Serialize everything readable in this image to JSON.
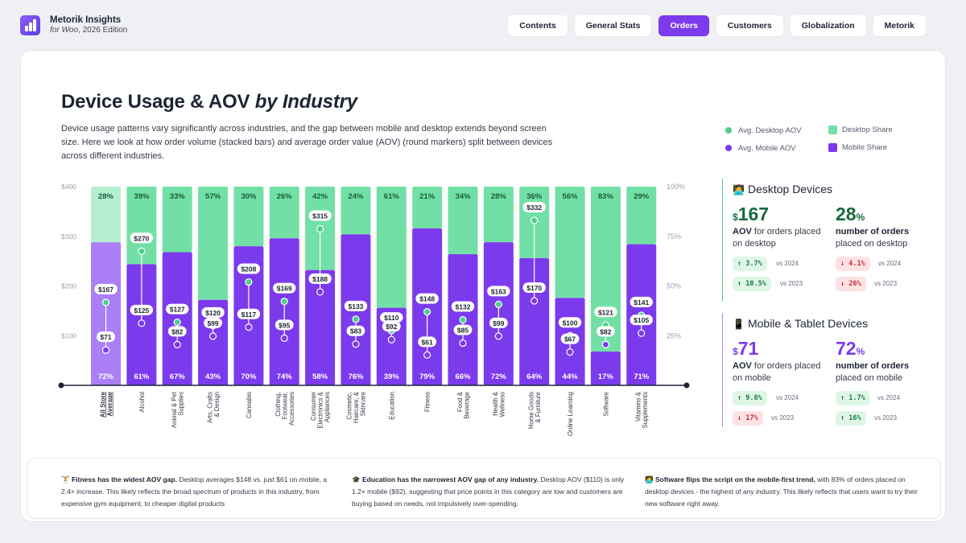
{
  "brand": {
    "title": "Metorik Insights",
    "subtitle_italic": "for Woo",
    "subtitle_rest": ", 2026 Edition"
  },
  "nav": [
    {
      "label": "Contents",
      "active": false
    },
    {
      "label": "General Stats",
      "active": false
    },
    {
      "label": "Orders",
      "active": true
    },
    {
      "label": "Customers",
      "active": false
    },
    {
      "label": "Globalization",
      "active": false
    },
    {
      "label": "Metorik",
      "active": false
    }
  ],
  "page": {
    "title_main": "Device Usage & AOV",
    "title_italic": "by Industry",
    "description": "Device usage patterns vary significantly across industries, and the gap between mobile and desktop extends beyond screen size. Here we look at how order volume (stacked bars) and average order value (AOV) (round markers) split between devices across different industries."
  },
  "legend": {
    "desktop_aov": "Avg. Desktop AOV",
    "mobile_aov": "Avg. Mobile AOV",
    "desktop_share": "Desktop Share",
    "mobile_share": "Mobile Share"
  },
  "colors": {
    "desktop_share": "#72e0a6",
    "mobile_share": "#7c3aed",
    "average_desktop": "#b4efcf",
    "average_mobile": "#ab80f7",
    "desktop_aov": "#4ccf8a",
    "mobile_aov": "#7c3aed"
  },
  "chart_data": {
    "type": "bar",
    "categories": [
      "All Store Average",
      "Alcohol",
      "Animal & Pet Supplies",
      "Arts, Crafts & Design",
      "Cannabis",
      "Clothing, Footwear, Accessories",
      "Consumer Electronics & Appliances",
      "Cosmetic, Haircare, & Skincare",
      "Education",
      "Fitness",
      "Food & Beverage",
      "Health & Wellness",
      "Home Goods & Furniture",
      "Online Learning",
      "Software",
      "Vitamins & Supplements"
    ],
    "category_labels": [
      [
        "All Store",
        "Average"
      ],
      [
        "Alcohol"
      ],
      [
        "Animal & Pet",
        "Supplies"
      ],
      [
        "Arts, Crafts",
        "& Design"
      ],
      [
        "Cannabis"
      ],
      [
        "Clothing,",
        "Footwear,",
        "Accessories"
      ],
      [
        "Consumer",
        "Electronics &",
        "Appliances"
      ],
      [
        "Cosmetic,",
        "Haircare, &",
        "Skincare"
      ],
      [
        "Education"
      ],
      [
        "Fitness"
      ],
      [
        "Food &",
        "Beverage"
      ],
      [
        "Health &",
        "Wellness"
      ],
      [
        "Home Goods",
        "& Furniture"
      ],
      [
        "Online Learning"
      ],
      [
        "Software"
      ],
      [
        "Vitamins &",
        "Supplements"
      ]
    ],
    "series": [
      {
        "name": "Mobile Share",
        "unit": "%",
        "values": [
          72,
          61,
          67,
          43,
          70,
          74,
          58,
          76,
          39,
          79,
          66,
          72,
          64,
          44,
          17,
          71
        ]
      },
      {
        "name": "Desktop Share",
        "unit": "%",
        "values": [
          28,
          39,
          33,
          57,
          30,
          26,
          42,
          24,
          61,
          21,
          34,
          28,
          36,
          56,
          83,
          29
        ]
      },
      {
        "name": "Avg. Desktop AOV",
        "unit": "$",
        "values": [
          167,
          270,
          127,
          120,
          208,
          169,
          315,
          133,
          110,
          148,
          132,
          163,
          332,
          100,
          121,
          141
        ]
      },
      {
        "name": "Avg. Mobile AOV",
        "unit": "$",
        "values": [
          71,
          125,
          82,
          99,
          117,
          95,
          188,
          83,
          92,
          61,
          85,
          99,
          170,
          67,
          82,
          105
        ]
      }
    ],
    "y_left_ticks": [
      "$400",
      "$300",
      "$200",
      "$100"
    ],
    "y_left_range": [
      0,
      400
    ],
    "y_right_ticks": [
      "100%",
      "75%",
      "50%",
      "25%"
    ],
    "y_right_range": [
      0,
      100
    ]
  },
  "desktop": {
    "icon": "🧑‍💻",
    "title": "Desktop Devices",
    "aov_symbol": "$",
    "aov_value": "167",
    "aov_label_bold": "AOV",
    "aov_label_rest": " for orders placed on desktop",
    "orders_value": "28",
    "orders_unit": "%",
    "orders_label_bold": "number of orders",
    "orders_label_rest": " placed on desktop",
    "badges": [
      {
        "text": "↑ 3.7%",
        "vs": "vs 2024",
        "dir": "up"
      },
      {
        "text": "↑ 10.5%",
        "vs": "vs 2023",
        "dir": "up"
      },
      {
        "text": "↓ 4.1%",
        "vs": "vs 2024",
        "dir": "down"
      },
      {
        "text": "↓ 26%",
        "vs": "vs 2023",
        "dir": "down"
      }
    ]
  },
  "mobile": {
    "icon": "📱",
    "title": "Mobile & Tablet Devices",
    "aov_symbol": "$",
    "aov_value": "71",
    "aov_label_bold": "AOV",
    "aov_label_rest": " for orders placed on mobile",
    "orders_value": "72",
    "orders_unit": "%",
    "orders_label_bold": "number of orders",
    "orders_label_rest": " placed on mobile",
    "badges": [
      {
        "text": "↑ 9.6%",
        "vs": "vs 2024",
        "dir": "up"
      },
      {
        "text": "↓ 17%",
        "vs": "vs 2023",
        "dir": "down"
      },
      {
        "text": "↑ 1.7%",
        "vs": "vs 2024",
        "dir": "up"
      },
      {
        "text": "↑ 16%",
        "vs": "vs 2023",
        "dir": "up"
      }
    ]
  },
  "insights": [
    {
      "icon": "🏋️",
      "bold": "Fitness has the widest AOV gap.",
      "text": " Desktop averages $148 vs. just $61 on mobile, a 2.4× increase. This likely reflects the broad spectrum of products in this industry, from expensive gym equipment, to cheaper digital products"
    },
    {
      "icon": "🎓",
      "bold": "Education has the narrowest AOV gap of any industry.",
      "text": " Desktop AOV ($110) is only 1.2× mobile ($92), suggesting that price points in this category are low and customers are buying based on needs, not impulsively over-spending."
    },
    {
      "icon": "🧑‍💻",
      "bold": "Software flips the script on the mobile-first trend,",
      "text": " with 83% of orders placed on desktop devices - the highest of any industry. This likely reflects that users want to try their new software right away."
    }
  ]
}
